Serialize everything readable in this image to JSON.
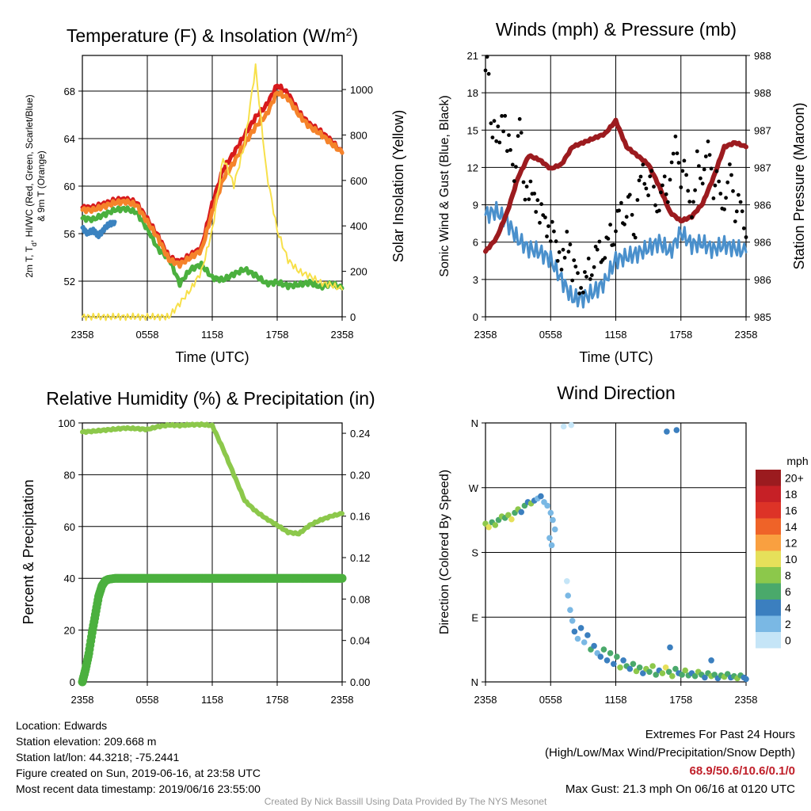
{
  "chart_data": [
    {
      "type": "line",
      "title": "Temperature (F) & Insolation (W/m²)",
      "title_main": "Temperature (F) & Insolation (W/m",
      "title_sup": "2",
      "title_close": ")",
      "ylabel_line1": "2m T, T",
      "ylabel_sub": "d",
      "ylabel_line1_rest": ", HI/WC (Red, Green, Scarlet/Blue)",
      "ylabel_line2": "& 9m T (Orange)",
      "y2label": "Solar Insolation (Yellow)",
      "xlabel": "Time (UTC)",
      "x_ticks": [
        "2358",
        "0558",
        "1158",
        "1758",
        "2358"
      ],
      "ylim": [
        49,
        71
      ],
      "y_ticks": [
        "52",
        "56",
        "60",
        "64",
        "68"
      ],
      "y2lim": [
        0,
        1150
      ],
      "y2_ticks": [
        "0",
        "200",
        "400",
        "600",
        "800",
        "1000"
      ],
      "series": [
        {
          "color": "#d7191c",
          "x": [
            0,
            1,
            2,
            3,
            4,
            5,
            6,
            7,
            8,
            9,
            10,
            11,
            12,
            13,
            14,
            15,
            16,
            17,
            18,
            19,
            20,
            21,
            22,
            23,
            24
          ],
          "values": [
            58.2,
            58.2,
            58.5,
            58.8,
            58.9,
            58.6,
            57.2,
            55.8,
            54.0,
            53.6,
            54.2,
            54.8,
            58.5,
            61.4,
            62.8,
            64.3,
            65.8,
            66.8,
            68.5,
            67.8,
            66.2,
            65.2,
            64.6,
            63.8,
            62.8
          ]
        },
        {
          "color": "#4bb03e",
          "x": [
            0,
            1,
            2,
            3,
            4,
            5,
            6,
            7,
            8,
            9,
            10,
            11,
            12,
            13,
            14,
            15,
            16,
            17,
            18,
            19,
            20,
            21,
            22,
            23,
            24
          ],
          "values": [
            57.3,
            57.2,
            57.6,
            58.0,
            58.1,
            57.8,
            56.4,
            54.7,
            53.9,
            51.8,
            53.0,
            53.4,
            52.3,
            52.1,
            52.6,
            53.0,
            52.5,
            51.8,
            51.9,
            51.6,
            51.7,
            51.9,
            51.5,
            51.8,
            51.4
          ]
        },
        {
          "color": "#f5832a",
          "x": [
            0,
            1,
            2,
            3,
            4,
            5,
            6,
            7,
            8,
            9,
            10,
            11,
            12,
            13,
            14,
            15,
            16,
            17,
            18,
            19,
            20,
            21,
            22,
            23,
            24
          ],
          "values": [
            58.0,
            58.0,
            58.3,
            58.6,
            58.7,
            58.4,
            57.0,
            55.6,
            53.8,
            53.4,
            54.0,
            54.6,
            57.8,
            60.6,
            62.0,
            63.6,
            65.0,
            66.0,
            67.9,
            67.4,
            66.0,
            65.0,
            64.4,
            63.6,
            62.8
          ]
        },
        {
          "color": "#3b83c0",
          "x": [
            0,
            0.5,
            1,
            1.5,
            2,
            2.5,
            3
          ],
          "values": [
            56.5,
            56.0,
            56.3,
            55.8,
            56.4,
            56.8,
            57.0
          ]
        },
        {
          "color": "#f7e04a",
          "axis": "y2",
          "x": [
            0,
            1,
            2,
            3,
            4,
            5,
            6,
            7,
            8,
            9,
            10,
            11,
            12,
            13,
            14,
            15,
            16,
            17,
            18,
            19,
            20,
            21,
            22,
            23,
            24
          ],
          "values": [
            0,
            0,
            0,
            0,
            0,
            0,
            0,
            0,
            0,
            60,
            120,
            200,
            380,
            700,
            580,
            760,
            1100,
            640,
            380,
            250,
            200,
            180,
            150,
            140,
            120
          ]
        }
      ]
    },
    {
      "type": "scatter",
      "title": "Winds (mph) & Pressure (mb)",
      "ylabel": "Sonic Wind & Gust (Blue, Black)",
      "y2label": "Station Pressure (Maroon)",
      "xlabel": "Time (UTC)",
      "x_ticks": [
        "2358",
        "0558",
        "1158",
        "1758",
        "2358"
      ],
      "ylim": [
        0,
        21
      ],
      "y_ticks": [
        "0",
        "3",
        "6",
        "9",
        "12",
        "15",
        "18",
        "21"
      ],
      "y2lim": [
        985,
        988
      ],
      "y2_ticks": [
        "985",
        "986",
        "986",
        "986",
        "987",
        "987",
        "988",
        "988"
      ],
      "wind": {
        "color": "#4a90cc",
        "x": [
          0,
          1,
          2,
          3,
          4,
          5,
          6,
          7,
          8,
          9,
          10,
          11,
          12,
          13,
          14,
          15,
          16,
          17,
          18,
          19,
          20,
          21,
          22,
          23,
          24
        ],
        "values": [
          8.2,
          8.5,
          7.6,
          6.2,
          5.5,
          5.2,
          4.6,
          3.0,
          1.5,
          1.5,
          2.0,
          2.8,
          4.6,
          4.8,
          5.1,
          5.5,
          6.0,
          5.2,
          6.8,
          5.8,
          5.9,
          5.4,
          5.8,
          5.5,
          5.2
        ]
      },
      "gust": {
        "color": "#000000",
        "x": [
          0,
          0.5,
          1,
          1.5,
          2,
          2.5,
          3,
          3.5,
          4,
          4.5,
          5,
          5.5,
          6,
          6.5,
          7,
          7.5,
          8,
          8.5,
          9,
          9.5,
          10,
          10.5,
          11,
          11.5,
          12,
          12.5,
          13,
          13.5,
          14,
          14.5,
          15,
          15.5,
          16,
          16.5,
          17,
          17.5,
          18,
          18.5,
          19,
          19.5,
          20,
          20.5,
          21,
          21.5,
          22,
          22.5,
          23,
          23.5,
          24
        ],
        "values": [
          19.8,
          15.5,
          14.2,
          16.0,
          13.5,
          12.0,
          14.8,
          10.5,
          9.8,
          9.5,
          8.0,
          7.5,
          6.6,
          5.5,
          4.4,
          6.2,
          3.6,
          2.8,
          2.7,
          3.9,
          4.8,
          5.2,
          5.6,
          6.5,
          7.8,
          8.2,
          9.0,
          7.2,
          10.4,
          11.2,
          10.8,
          9.4,
          9.6,
          10.2,
          12.1,
          13.4,
          11.5,
          10.3,
          9.1,
          12.2,
          11.8,
          13.0,
          10.6,
          9.8,
          9.7,
          11.2,
          8.7,
          8.2,
          7.4
        ]
      },
      "pressure": {
        "color": "#9c1b1f",
        "x": [
          0,
          1,
          2,
          3,
          4,
          5,
          6,
          7,
          8,
          9,
          10,
          11,
          12,
          13,
          14,
          15,
          16,
          17,
          18,
          19,
          20,
          21,
          22,
          23,
          24
        ],
        "values": [
          985.75,
          985.9,
          986.2,
          986.6,
          986.85,
          986.8,
          986.7,
          986.75,
          986.95,
          987.0,
          987.05,
          987.1,
          987.25,
          986.95,
          986.85,
          986.75,
          986.5,
          986.2,
          986.1,
          986.15,
          986.3,
          986.6,
          986.95,
          987.0,
          986.95
        ]
      }
    },
    {
      "type": "line",
      "title": "Relative Humidity (%) & Precipitation (in)",
      "ylabel": "Percent & Precipitation",
      "xlabel": "",
      "x_ticks": [
        "2358",
        "0558",
        "1158",
        "1758",
        "2358"
      ],
      "ylim": [
        0,
        100
      ],
      "y_ticks": [
        "0",
        "20",
        "40",
        "60",
        "80",
        "100"
      ],
      "y2lim": [
        0,
        0.25
      ],
      "y2_ticks": [
        "0.00",
        "0.04",
        "0.08",
        "0.12",
        "0.16",
        "0.20",
        "0.24"
      ],
      "series": [
        {
          "color": "#8cc84b",
          "x": [
            0,
            1,
            2,
            3,
            4,
            5,
            6,
            7,
            8,
            9,
            10,
            11,
            12,
            13,
            14,
            15,
            16,
            17,
            18,
            19,
            20,
            21,
            22,
            23,
            24
          ],
          "values": [
            96.5,
            96.8,
            97.2,
            97.6,
            98.0,
            97.8,
            97.5,
            98.6,
            99.2,
            99.0,
            99.3,
            99.4,
            99.0,
            90.0,
            80.0,
            70.0,
            66.0,
            63.0,
            60.5,
            57.8,
            57.2,
            60.5,
            62.5,
            64.0,
            65.0
          ]
        },
        {
          "color": "#4bb03e",
          "x": [
            0,
            0.3,
            0.6,
            0.9,
            1.2,
            1.5,
            1.8,
            2.1,
            2.4,
            3,
            6,
            9,
            12,
            15,
            18,
            21,
            24
          ],
          "values": [
            0,
            5,
            11,
            19,
            26,
            33,
            37,
            39,
            39.6,
            40,
            40,
            40,
            40,
            40,
            40,
            40,
            40
          ]
        }
      ]
    },
    {
      "type": "scatter",
      "title": "Wind Direction",
      "ylabel": "Direction (Colored By Speed)",
      "xlabel": "",
      "x_ticks": [
        "2358",
        "0558",
        "1158",
        "1758",
        "2358"
      ],
      "y_ticks": [
        "N",
        "E",
        "S",
        "W",
        "N"
      ],
      "ylim": [
        0,
        360
      ],
      "legend_title": "mph",
      "legend_labels": [
        "20+",
        "18",
        "16",
        "14",
        "12",
        "10",
        "8",
        "6",
        "4",
        "2",
        "0"
      ],
      "legend_colors": [
        "#9b1b1f",
        "#c62026",
        "#dd3327",
        "#ef6328",
        "#f9a040",
        "#e6e05a",
        "#8cc84b",
        "#4aa96b",
        "#3b7fbf",
        "#7ab8e4",
        "#c5e5f7"
      ],
      "points": [
        {
          "x": 0.0,
          "y": 220,
          "v": 8
        },
        {
          "x": 0.3,
          "y": 215,
          "v": 10
        },
        {
          "x": 0.6,
          "y": 222,
          "v": 6
        },
        {
          "x": 0.9,
          "y": 218,
          "v": 8
        },
        {
          "x": 1.2,
          "y": 225,
          "v": 6
        },
        {
          "x": 1.5,
          "y": 230,
          "v": 8
        },
        {
          "x": 1.8,
          "y": 228,
          "v": 6
        },
        {
          "x": 2.1,
          "y": 232,
          "v": 8
        },
        {
          "x": 2.4,
          "y": 226,
          "v": 10
        },
        {
          "x": 2.7,
          "y": 235,
          "v": 6
        },
        {
          "x": 3.0,
          "y": 240,
          "v": 8
        },
        {
          "x": 3.3,
          "y": 236,
          "v": 4
        },
        {
          "x": 3.6,
          "y": 245,
          "v": 6
        },
        {
          "x": 3.9,
          "y": 250,
          "v": 4
        },
        {
          "x": 4.2,
          "y": 248,
          "v": 8
        },
        {
          "x": 4.5,
          "y": 252,
          "v": 4
        },
        {
          "x": 4.8,
          "y": 255,
          "v": 2
        },
        {
          "x": 5.1,
          "y": 258,
          "v": 4
        },
        {
          "x": 5.4,
          "y": 250,
          "v": 2
        },
        {
          "x": 5.7,
          "y": 245,
          "v": 2
        },
        {
          "x": 6.0,
          "y": 235,
          "v": 2
        },
        {
          "x": 6.2,
          "y": 225,
          "v": 2
        },
        {
          "x": 6.4,
          "y": 212,
          "v": 2
        },
        {
          "x": 5.9,
          "y": 200,
          "v": 2
        },
        {
          "x": 6.1,
          "y": 190,
          "v": 2
        },
        {
          "x": 7.2,
          "y": 355,
          "v": 0
        },
        {
          "x": 7.9,
          "y": 357,
          "v": 0
        },
        {
          "x": 7.5,
          "y": 140,
          "v": 0
        },
        {
          "x": 7.6,
          "y": 120,
          "v": 2
        },
        {
          "x": 7.8,
          "y": 100,
          "v": 2
        },
        {
          "x": 8.0,
          "y": 85,
          "v": 2
        },
        {
          "x": 8.2,
          "y": 70,
          "v": 4
        },
        {
          "x": 8.5,
          "y": 60,
          "v": 2
        },
        {
          "x": 8.8,
          "y": 75,
          "v": 4
        },
        {
          "x": 9.1,
          "y": 55,
          "v": 2
        },
        {
          "x": 9.4,
          "y": 65,
          "v": 4
        },
        {
          "x": 9.7,
          "y": 45,
          "v": 6
        },
        {
          "x": 10.0,
          "y": 50,
          "v": 4
        },
        {
          "x": 10.3,
          "y": 40,
          "v": 2
        },
        {
          "x": 10.6,
          "y": 35,
          "v": 4
        },
        {
          "x": 10.9,
          "y": 45,
          "v": 6
        },
        {
          "x": 11.2,
          "y": 30,
          "v": 4
        },
        {
          "x": 11.5,
          "y": 40,
          "v": 6
        },
        {
          "x": 11.8,
          "y": 25,
          "v": 4
        },
        {
          "x": 12.1,
          "y": 35,
          "v": 6
        },
        {
          "x": 12.4,
          "y": 20,
          "v": 8
        },
        {
          "x": 12.7,
          "y": 30,
          "v": 4
        },
        {
          "x": 13.0,
          "y": 22,
          "v": 6
        },
        {
          "x": 13.3,
          "y": 18,
          "v": 4
        },
        {
          "x": 13.6,
          "y": 25,
          "v": 6
        },
        {
          "x": 13.9,
          "y": 15,
          "v": 8
        },
        {
          "x": 14.2,
          "y": 20,
          "v": 6
        },
        {
          "x": 14.5,
          "y": 12,
          "v": 4
        },
        {
          "x": 14.8,
          "y": 18,
          "v": 8
        },
        {
          "x": 15.1,
          "y": 14,
          "v": 6
        },
        {
          "x": 15.4,
          "y": 22,
          "v": 8
        },
        {
          "x": 15.7,
          "y": 10,
          "v": 6
        },
        {
          "x": 16.0,
          "y": 16,
          "v": 4
        },
        {
          "x": 16.3,
          "y": 12,
          "v": 8
        },
        {
          "x": 16.6,
          "y": 20,
          "v": 10
        },
        {
          "x": 16.9,
          "y": 14,
          "v": 6
        },
        {
          "x": 17.2,
          "y": 8,
          "v": 8
        },
        {
          "x": 17.5,
          "y": 18,
          "v": 6
        },
        {
          "x": 17.8,
          "y": 12,
          "v": 4
        },
        {
          "x": 18.1,
          "y": 10,
          "v": 6
        },
        {
          "x": 18.4,
          "y": 16,
          "v": 8
        },
        {
          "x": 18.7,
          "y": 9,
          "v": 6
        },
        {
          "x": 19.0,
          "y": 12,
          "v": 4
        },
        {
          "x": 19.3,
          "y": 8,
          "v": 6
        },
        {
          "x": 19.6,
          "y": 14,
          "v": 8
        },
        {
          "x": 19.9,
          "y": 10,
          "v": 6
        },
        {
          "x": 20.2,
          "y": 6,
          "v": 4
        },
        {
          "x": 20.5,
          "y": 12,
          "v": 6
        },
        {
          "x": 20.8,
          "y": 8,
          "v": 8
        },
        {
          "x": 21.1,
          "y": 10,
          "v": 6
        },
        {
          "x": 21.4,
          "y": 5,
          "v": 4
        },
        {
          "x": 21.7,
          "y": 9,
          "v": 6
        },
        {
          "x": 22.0,
          "y": 7,
          "v": 8
        },
        {
          "x": 22.3,
          "y": 11,
          "v": 6
        },
        {
          "x": 22.6,
          "y": 6,
          "v": 4
        },
        {
          "x": 22.9,
          "y": 8,
          "v": 6
        },
        {
          "x": 23.2,
          "y": 5,
          "v": 8
        },
        {
          "x": 23.5,
          "y": 9,
          "v": 6
        },
        {
          "x": 23.8,
          "y": 6,
          "v": 4
        },
        {
          "x": 24.0,
          "y": 4,
          "v": 4
        },
        {
          "x": 16.7,
          "y": 348,
          "v": 4
        },
        {
          "x": 17.6,
          "y": 350,
          "v": 4
        },
        {
          "x": 17.0,
          "y": 48,
          "v": 4
        },
        {
          "x": 20.8,
          "y": 30,
          "v": 4
        }
      ]
    }
  ],
  "info": {
    "location": "Location: Edwards",
    "elevation": "Station elevation: 209.668 m",
    "latlon": "Station lat/lon: 44.3218; -75.2441",
    "created": "Figure created on Sun, 2019-06-16, at 23:58 UTC",
    "recent": "Most recent data timestamp: 2019/06/16 23:55:00"
  },
  "extremes": {
    "title": "Extremes For Past 24 Hours",
    "subtitle": "(High/Low/Max Wind/Precipitation/Snow Depth)",
    "values": "68.9/50.6/10.6/0.1/0",
    "max_gust": "Max Gust: 21.3 mph On 06/16 at 0120 UTC"
  },
  "credit": "Created By Nick Bassill Using Data Provided By The NYS Mesonet"
}
